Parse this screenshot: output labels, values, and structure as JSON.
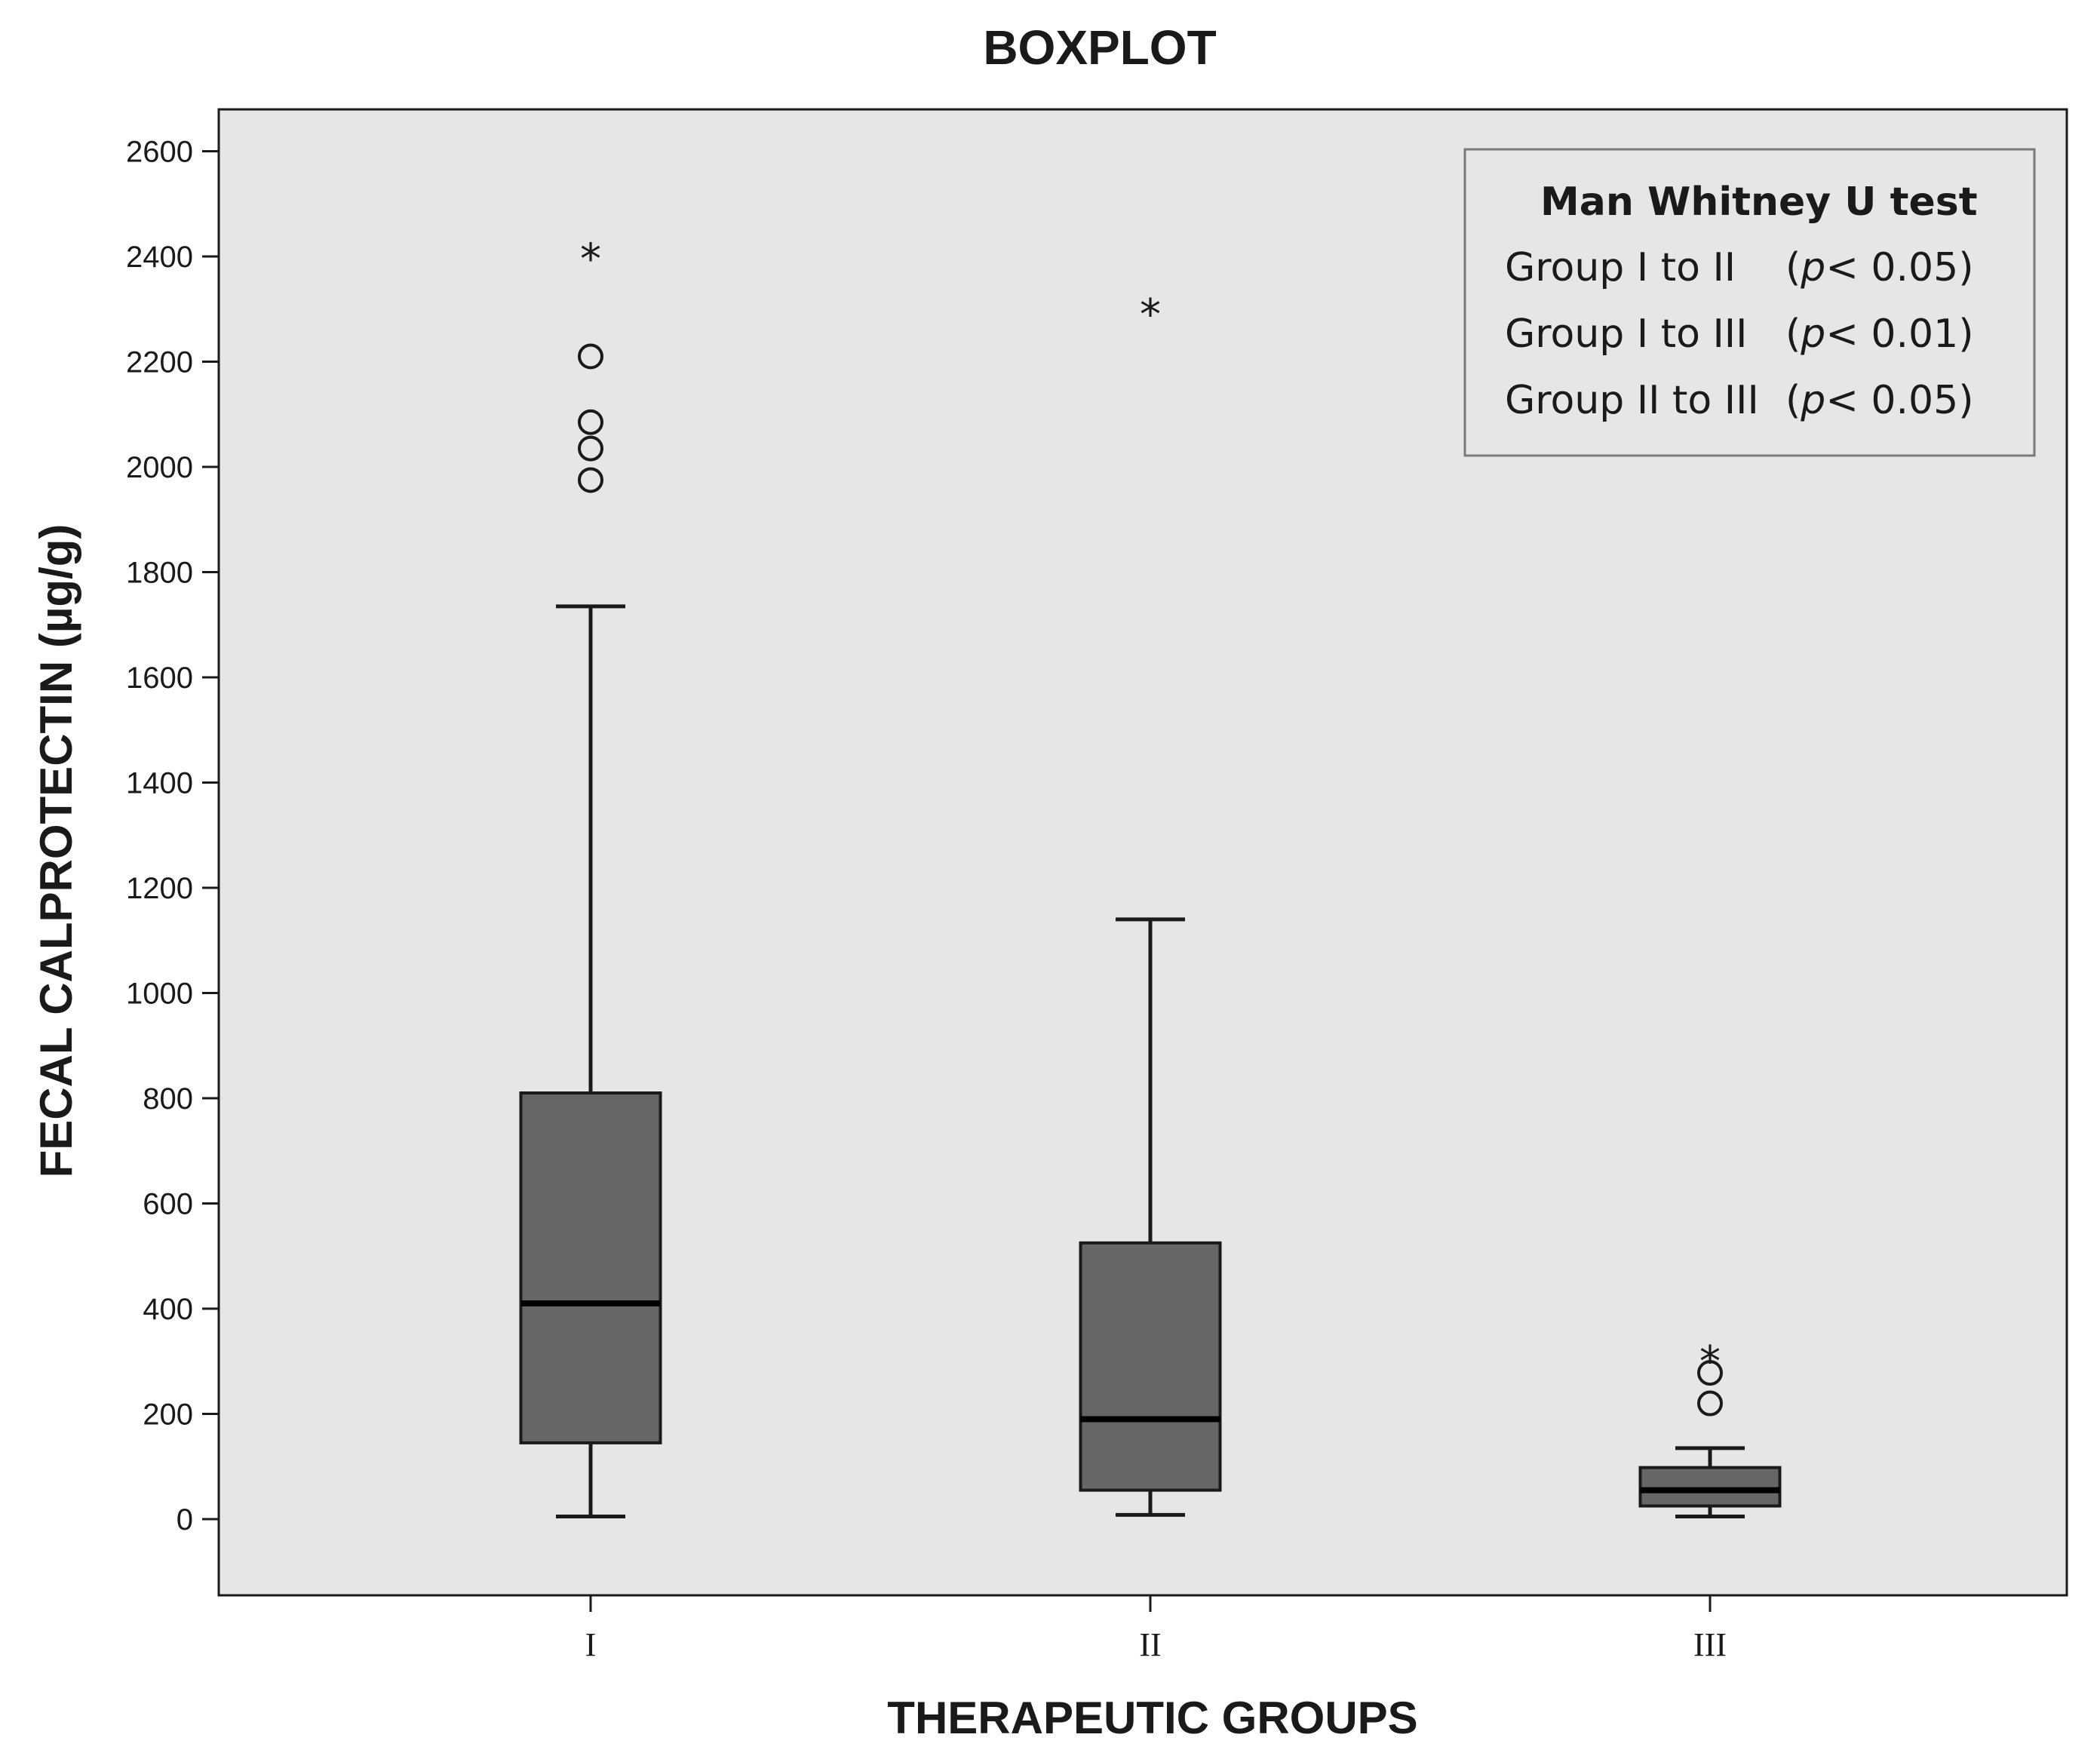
{
  "chart_data": {
    "type": "boxplot",
    "title": "BOXPLOT",
    "xlabel": "THERAPEUTIC GROUPS",
    "ylabel": "FECAL CALPROTECTIN (µg/g)",
    "ylim": [
      -140,
      2690
    ],
    "yticks": [
      0,
      200,
      400,
      600,
      800,
      1000,
      1200,
      1400,
      1600,
      1800,
      2000,
      2200,
      2400,
      2600
    ],
    "categories": [
      "I",
      "II",
      "III"
    ],
    "boxes": [
      {
        "name": "I",
        "whisker_low": 5,
        "q1": 145,
        "median": 410,
        "q3": 810,
        "whisker_high": 1735,
        "outliers": [
          1975,
          2035,
          2085,
          2210
        ],
        "extremes": [
          2405
        ]
      },
      {
        "name": "II",
        "whisker_low": 8,
        "q1": 55,
        "median": 190,
        "q3": 525,
        "whisker_high": 1140,
        "outliers": [],
        "extremes": [
          2300
        ]
      },
      {
        "name": "III",
        "whisker_low": 5,
        "q1": 25,
        "median": 55,
        "q3": 98,
        "whisker_high": 135,
        "outliers": [
          220,
          278
        ],
        "extremes": [
          310
        ]
      }
    ],
    "legend": {
      "title": "Man Whitney U test",
      "items": [
        {
          "label": "Group I to II",
          "p_symbol": "p",
          "p_value": "< 0.05"
        },
        {
          "label": "Group I to III",
          "p_symbol": "p",
          "p_value": "< 0.01"
        },
        {
          "label": "Group II to III",
          "p_symbol": "p",
          "p_value": "< 0.05"
        }
      ],
      "position": "top-right"
    },
    "colors": {
      "plot_background": "#e6e6e6",
      "box_fill": "#666666",
      "stroke": "#1a1a1a"
    }
  }
}
